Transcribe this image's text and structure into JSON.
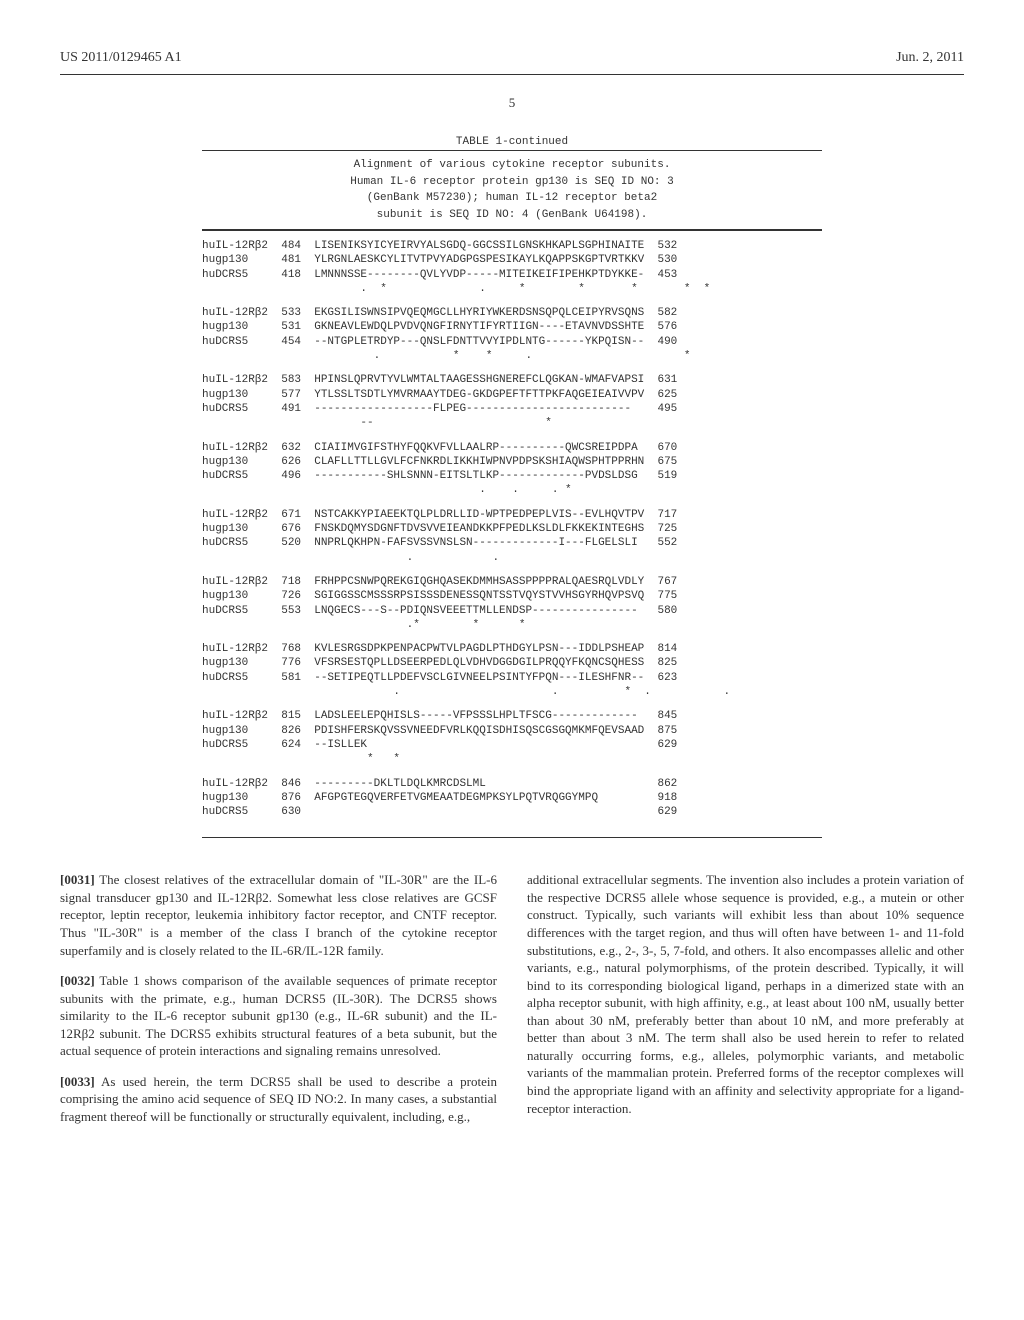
{
  "header": {
    "left": "US 2011/0129465 A1",
    "right": "Jun. 2, 2011"
  },
  "pageNumber": "5",
  "table": {
    "title": "TABLE 1-continued",
    "subtitle1": "Alignment of various cytokine receptor subunits.",
    "subtitle2": "Human IL-6 receptor protein gp130 is SEQ ID NO: 3",
    "subtitle3": "(GenBank M57230); human IL-12 receptor beta2",
    "subtitle4": "subunit is SEQ ID NO: 4 (GenBank U64198)."
  },
  "blocks": [
    {
      "rows": [
        {
          "label": "huIL-12Rβ2",
          "start": "484",
          "seq": "LISENIKSYICYEIRVYALSGDQ-GGCSSILGNSKHKAPLSGPHINAITE",
          "end": "532"
        },
        {
          "label": "hugp130",
          "start": "481",
          "seq": "YLRGNLAESKCYLITVTPVYADGPGSPESIKAYLKQAPPSKGPTVRTKKV",
          "end": "530"
        },
        {
          "label": "huDCRS5",
          "start": "418",
          "seq": "LMNNNSSE--------QVLYVDP-----MITEIKEIFIPEHKPTDYKKE-",
          "end": "453"
        }
      ],
      "cons": "       .  *              .     *        *       *       *  *"
    },
    {
      "rows": [
        {
          "label": "huIL-12Rβ2",
          "start": "533",
          "seq": "EKGSILISWNSIPVQEQMGCLLHYRIYWKERDSNSQPQLCEIPYRVSQNS",
          "end": "582"
        },
        {
          "label": "hugp130",
          "start": "531",
          "seq": "GKNEAVLEWDQLPVDVQNGFIRNYTIFYRTIIGN----ETAVNVDSSHTE",
          "end": "576"
        },
        {
          "label": "huDCRS5",
          "start": "454",
          "seq": "--NTGPLETRDYP---QNSLFDNTTVVYIPDLNTG------YKPQISN--",
          "end": "490"
        }
      ],
      "cons": "         .           *    *     .                       *"
    },
    {
      "rows": [
        {
          "label": "huIL-12Rβ2",
          "start": "583",
          "seq": "HPINSLQPRVTYVLWMTALTAAGESSHGNEREFCLQGKAN-WMAFVAPSI",
          "end": "631"
        },
        {
          "label": "hugp130",
          "start": "577",
          "seq": "YTLSSLTSDTLYMVRMAAYTDEG-GKDGPEFTFTTPKFAQGEIEAIVVPV",
          "end": "625"
        },
        {
          "label": "huDCRS5",
          "start": "491",
          "seq": "------------------FLPEG-------------------------",
          "end": "495"
        }
      ],
      "cons": "       --                          *"
    },
    {
      "rows": [
        {
          "label": "huIL-12Rβ2",
          "start": "632",
          "seq": "CIAIIMVGIFSTHYFQQKVFVLLAALRP----------QWCSREIPDPA",
          "end": "670"
        },
        {
          "label": "hugp130",
          "start": "626",
          "seq": "CLAFLLTTLLGVLFCFNKRDLIKKHIWPNVPDPSKSHIAQWSPHTPPRHN",
          "end": "675"
        },
        {
          "label": "huDCRS5",
          "start": "496",
          "seq": "-----------SHLSNNN-EITSLTLKP-------------PVDSLDSG",
          "end": "519"
        }
      ],
      "cons": "                         .    .     . *"
    },
    {
      "rows": [
        {
          "label": "huIL-12Rβ2",
          "start": "671",
          "seq": "NSTCAKKYPIAEEKTQLPLDRLLID-WPTPEDPEPLVIS--EVLHQVTPV",
          "end": "717"
        },
        {
          "label": "hugp130",
          "start": "676",
          "seq": "FNSKDQMYSDGNFTDVSVVEIEANDKKPFPEDLKSLDLFKKEKINTEGHS",
          "end": "725"
        },
        {
          "label": "huDCRS5",
          "start": "520",
          "seq": "NNPRLQKHPN-FAFSVSSVNSLSN-------------I---FLGELSLI",
          "end": "552"
        }
      ],
      "cons": "              .            ."
    },
    {
      "rows": [
        {
          "label": "huIL-12Rβ2",
          "start": "718",
          "seq": "FRHPPCSNWPQREKGIQGHQASEKDMMHSASSPPPPRALQAESRQLVDLY",
          "end": "767"
        },
        {
          "label": "hugp130",
          "start": "726",
          "seq": "SGIGGSSCMSSSRPSISSSDENESSQNTSSTVQYSTVVHSGYRHQVPSVQ",
          "end": "775"
        },
        {
          "label": "huDCRS5",
          "start": "553",
          "seq": "LNQGECS---S--PDIQNSVEEETTMLLENDSP----------------",
          "end": "580"
        }
      ],
      "cons": "              .*        *      *"
    },
    {
      "rows": [
        {
          "label": "huIL-12Rβ2",
          "start": "768",
          "seq": "KVLESRGSDPKPENPACPWTVLPAGDLPTHDGYLPSN---IDDLPSHEAP",
          "end": "814"
        },
        {
          "label": "hugp130",
          "start": "776",
          "seq": "VFSRSESTQPLLDSEERPEDLQLVDHVDGGDGILPRQQYFKQNCSQHESS",
          "end": "825"
        },
        {
          "label": "huDCRS5",
          "start": "581",
          "seq": "--SETIPEQTLLPDEFVSCLGIVNEELPSINTYFPQN---ILESHFNR--",
          "end": "623"
        }
      ],
      "cons": "            .                       .          *  .           ."
    },
    {
      "rows": [
        {
          "label": "huIL-12Rβ2",
          "start": "815",
          "seq": "LADSLEELEPQHISLS-----VFPSSSLHPLTFSCG-------------",
          "end": "845"
        },
        {
          "label": "hugp130",
          "start": "826",
          "seq": "PDISHFERSKQVSSVNEEDFVRLKQQISDHISQSCGSGQMKMFQEVSAAD",
          "end": "875"
        },
        {
          "label": "huDCRS5",
          "start": "624",
          "seq": "--ISLLEK",
          "end": "629"
        }
      ],
      "cons": "        *   *"
    },
    {
      "rows": [
        {
          "label": "huIL-12Rβ2",
          "start": "846",
          "seq": "---------DKLTLDQLKMRCDSLML",
          "end": "862"
        },
        {
          "label": "hugp130",
          "start": "876",
          "seq": "AFGPGTEGQVERFETVGMEAATDEGMPKSYLPQTVRQGGYMPQ",
          "end": "918"
        },
        {
          "label": "huDCRS5",
          "start": "630",
          "seq": "",
          "end": "629"
        }
      ],
      "cons": ""
    }
  ],
  "bodyText": {
    "p31_label": "[0031]",
    "p31": "   The closest relatives of the extracellular domain of \"IL-30R\" are the IL-6 signal transducer gp130 and IL-12Rβ2. Somewhat less close relatives are GCSF receptor, leptin receptor, leukemia inhibitory factor receptor, and CNTF receptor. Thus \"IL-30R\" is a member of the class I branch of the cytokine receptor superfamily and is closely related to the IL-6R/IL-12R family.",
    "p32_label": "[0032]",
    "p32": "   Table 1 shows comparison of the available sequences of primate receptor subunits with the primate, e.g., human DCRS5 (IL-30R). The DCRS5 shows similarity to the IL-6 receptor subunit gp130 (e.g., IL-6R subunit) and the IL-12Rβ2 subunit. The DCRS5 exhibits structural features of a beta subunit, but the actual sequence of protein interactions and signaling remains unresolved.",
    "p33_label": "[0033]",
    "p33": "   As used herein, the term DCRS5 shall be used to describe a protein comprising the amino acid sequence of SEQ ID NO:2. In many cases, a substantial fragment thereof will be functionally or structurally equivalent, including, e.g.,",
    "p_right": "additional extracellular segments. The invention also includes a protein variation of the respective DCRS5 allele whose sequence is provided, e.g., a mutein or other construct. Typically, such variants will exhibit less than about 10% sequence differences with the target region, and thus will often have between 1- and 11-fold substitutions, e.g., 2-, 3-, 5, 7-fold, and others. It also encompasses allelic and other variants, e.g., natural polymorphisms, of the protein described. Typically, it will bind to its corresponding biological ligand, perhaps in a dimerized state with an alpha receptor subunit, with high affinity, e.g., at least about 100 nM, usually better than about 30 nM, preferably better than about 10 nM, and more preferably at better than about 3 nM. The term shall also be used herein to refer to related naturally occurring forms, e.g., alleles, polymorphic variants, and metabolic variants of the mammalian protein. Preferred forms of the receptor complexes will bind the appropriate ligand with an affinity and selectivity appropriate for a ligand-receptor interaction."
  }
}
